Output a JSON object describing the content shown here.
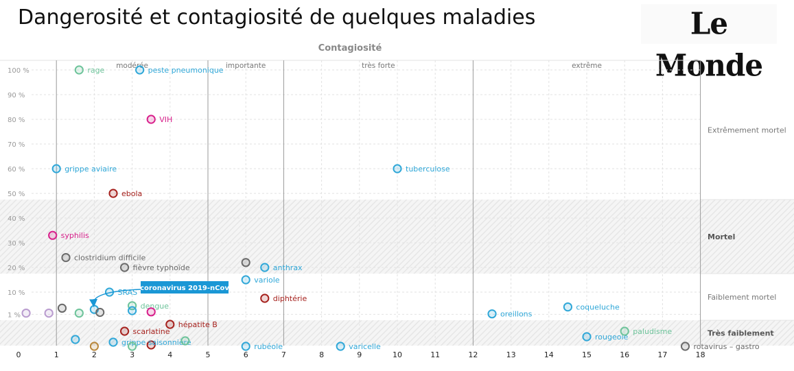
{
  "title": "Dangerosité et contagiosité de quelques maladies",
  "logo": "Le Monde",
  "chart_data": {
    "type": "scatter",
    "title": "Dangerosité et contagiosité de quelques maladies",
    "xlabel": "Contagiosité",
    "ylabel": "",
    "xlim": [
      0,
      18
    ],
    "x_ticks": [
      "0",
      "1",
      "2",
      "3",
      "4",
      "5",
      "6",
      "7",
      "8",
      "9",
      "10",
      "11",
      "12",
      "13",
      "14",
      "15",
      "16",
      "17",
      "18"
    ],
    "y_ticks": [
      {
        "value": 100,
        "label": "100 %"
      },
      {
        "value": 90,
        "label": "90 %"
      },
      {
        "value": 80,
        "label": "80 %"
      },
      {
        "value": 70,
        "label": "70 %"
      },
      {
        "value": 60,
        "label": "60 %"
      },
      {
        "value": 50,
        "label": "50 %"
      },
      {
        "value": 40,
        "label": "40 %"
      },
      {
        "value": 30,
        "label": "30 %"
      },
      {
        "value": 20,
        "label": "20 %"
      },
      {
        "value": 10,
        "label": "10 %"
      },
      {
        "value": 1,
        "label": "1 %"
      }
    ],
    "x_bands": [
      {
        "label": "modérée",
        "from": 1,
        "to": 5
      },
      {
        "label": "importante",
        "from": 5,
        "to": 7
      },
      {
        "label": "très forte",
        "from": 7,
        "to": 12
      },
      {
        "label": "extrême",
        "from": 12,
        "to": 18
      }
    ],
    "y_bands": [
      {
        "label": "Extrêmement mortel",
        "from": 50,
        "to": 100,
        "bold": false
      },
      {
        "label": "Mortel",
        "from": 20,
        "to": 50,
        "bold": true
      },
      {
        "label": "Faiblement mortel",
        "from": 1,
        "to": 20,
        "bold": false
      },
      {
        "label": "Très faiblement",
        "from": 0,
        "to": 1,
        "bold": true
      }
    ],
    "colors": {
      "blue": "#2fa7d8",
      "green": "#6dc39a",
      "pink": "#d8208b",
      "red": "#a5201c",
      "gray": "#6a6a6a",
      "purple": "#b99bcf",
      "brown": "#b8863a",
      "callout": "#1a97d5"
    },
    "points": [
      {
        "label": "rage",
        "x": 1.6,
        "y": 100,
        "color": "green"
      },
      {
        "label": "peste pneumonique",
        "x": 3.2,
        "y": 100,
        "color": "blue"
      },
      {
        "label": "VIH",
        "x": 3.5,
        "y": 80,
        "color": "pink"
      },
      {
        "label": "grippe aviaire",
        "x": 1.0,
        "y": 60,
        "color": "blue"
      },
      {
        "label": "tuberculose",
        "x": 10.0,
        "y": 60,
        "color": "blue"
      },
      {
        "label": "ebola",
        "x": 2.5,
        "y": 50,
        "color": "red"
      },
      {
        "label": "syphilis",
        "x": 0.9,
        "y": 33,
        "color": "pink"
      },
      {
        "label": "clostridium difficile",
        "x": 1.25,
        "y": 24,
        "color": "gray"
      },
      {
        "label": "fièvre typhoïde",
        "x": 2.8,
        "y": 20,
        "color": "gray"
      },
      {
        "label": "",
        "x": 6.0,
        "y": 22,
        "color": "gray"
      },
      {
        "label": "anthrax",
        "x": 6.5,
        "y": 20,
        "color": "blue"
      },
      {
        "label": "variole",
        "x": 6.0,
        "y": 15,
        "color": "blue"
      },
      {
        "label": "diphtérie",
        "x": 6.5,
        "y": 7.5,
        "color": "red"
      },
      {
        "label": "SRAS",
        "x": 2.4,
        "y": 10,
        "color": "blue"
      },
      {
        "label": "dengue",
        "x": 3.0,
        "y": 4.5,
        "color": "green"
      },
      {
        "label": "",
        "x": 3.0,
        "y": 2.5,
        "color": "blue"
      },
      {
        "label": "",
        "x": 3.5,
        "y": 2.0,
        "color": "pink"
      },
      {
        "label": "",
        "x": 2.0,
        "y": 3.0,
        "color": "blue"
      },
      {
        "label": "",
        "x": 2.15,
        "y": 1.8,
        "color": "gray"
      },
      {
        "label": "",
        "x": 1.15,
        "y": 3.5,
        "color": "gray"
      },
      {
        "label": "",
        "x": 1.6,
        "y": 1.5,
        "color": "green"
      },
      {
        "label": "",
        "x": 0.2,
        "y": 1.5,
        "color": "purple"
      },
      {
        "label": "",
        "x": 0.8,
        "y": 1.5,
        "color": "purple"
      },
      {
        "label": "hépatite B",
        "x": 4.0,
        "y": -2.5,
        "color": "red"
      },
      {
        "label": "scarlatine",
        "x": 2.8,
        "y": -5,
        "color": "red"
      },
      {
        "label": "",
        "x": 3.5,
        "y": -10,
        "color": "red"
      },
      {
        "label": "grippe saisonnière",
        "x": 2.5,
        "y": -9,
        "color": "blue"
      },
      {
        "label": "",
        "x": 3.0,
        "y": -10.5,
        "color": "green"
      },
      {
        "label": "",
        "x": 4.4,
        "y": -8.5,
        "color": "green"
      },
      {
        "label": "",
        "x": 1.5,
        "y": -8,
        "color": "blue"
      },
      {
        "label": "",
        "x": 2.0,
        "y": -10.5,
        "color": "brown"
      },
      {
        "label": "rubéole",
        "x": 6.0,
        "y": -10.5,
        "color": "blue"
      },
      {
        "label": "varicelle",
        "x": 8.5,
        "y": -10.5,
        "color": "blue"
      },
      {
        "label": "oreillons",
        "x": 12.5,
        "y": 1.2,
        "color": "blue"
      },
      {
        "label": "coqueluche",
        "x": 14.5,
        "y": 4.0,
        "color": "blue"
      },
      {
        "label": "rougeole",
        "x": 15.0,
        "y": -7,
        "color": "blue"
      },
      {
        "label": "paludisme",
        "x": 16.0,
        "y": -5,
        "color": "green"
      },
      {
        "label": "rotavirus – gastro",
        "x": 17.6,
        "y": -10.5,
        "color": "gray"
      }
    ],
    "highlight": {
      "label": "coronavirus 2019-nCov",
      "x": 2.0,
      "y": 3.0
    }
  }
}
